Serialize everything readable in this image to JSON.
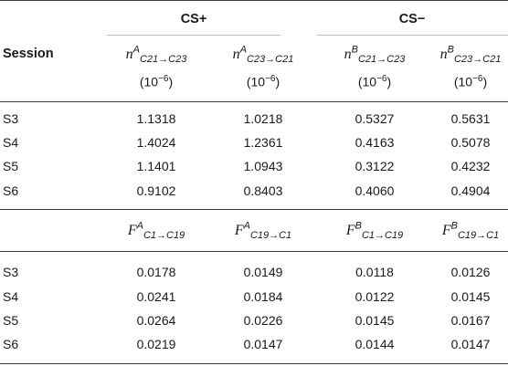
{
  "table": {
    "group_headers": [
      "CS+",
      "CS−"
    ],
    "row_header": "Session",
    "section1": {
      "columns": [
        {
          "var": "n",
          "sup": "A",
          "sub": "C21→C23",
          "unit_base": "(10",
          "unit_exp": "−6",
          "unit_close": ")"
        },
        {
          "var": "n",
          "sup": "A",
          "sub": "C23→C21",
          "unit_base": "(10",
          "unit_exp": "−6",
          "unit_close": ")"
        },
        {
          "var": "n",
          "sup": "B",
          "sub": "C21→C23",
          "unit_base": "(10",
          "unit_exp": "−6",
          "unit_close": ")"
        },
        {
          "var": "n",
          "sup": "B",
          "sub": "C23→C21",
          "unit_base": "(10",
          "unit_exp": "−6",
          "unit_close": ")"
        }
      ],
      "rows": [
        {
          "session": "S3",
          "values": [
            "1.1318",
            "1.0218",
            "0.5327",
            "0.5631"
          ]
        },
        {
          "session": "S4",
          "values": [
            "1.4024",
            "1.2361",
            "0.4163",
            "0.5078"
          ]
        },
        {
          "session": "S5",
          "values": [
            "1.1401",
            "1.0943",
            "0.3122",
            "0.4232"
          ]
        },
        {
          "session": "S6",
          "values": [
            "0.9102",
            "0.8403",
            "0.4060",
            "0.4904"
          ]
        }
      ]
    },
    "section2": {
      "columns": [
        {
          "var": "F",
          "sup": "A",
          "sub": "C1→C19"
        },
        {
          "var": "F",
          "sup": "A",
          "sub": "C19→C1"
        },
        {
          "var": "F",
          "sup": "B",
          "sub": "C1→C19"
        },
        {
          "var": "F",
          "sup": "B",
          "sub": "C19→C1"
        }
      ],
      "rows": [
        {
          "session": "S3",
          "values": [
            "0.0178",
            "0.0149",
            "0.0118",
            "0.0126"
          ]
        },
        {
          "session": "S4",
          "values": [
            "0.0241",
            "0.0184",
            "0.0122",
            "0.0145"
          ]
        },
        {
          "session": "S5",
          "values": [
            "0.0264",
            "0.0226",
            "0.0145",
            "0.0167"
          ]
        },
        {
          "session": "S6",
          "values": [
            "0.0219",
            "0.0147",
            "0.0144",
            "0.0147"
          ]
        }
      ]
    }
  }
}
